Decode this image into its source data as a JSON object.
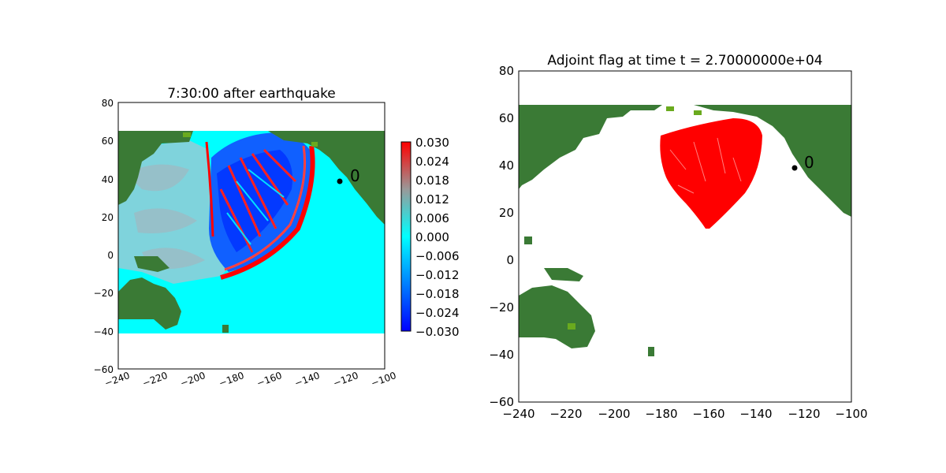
{
  "colors": {
    "land_dark": "#3a7a35",
    "land_light": "#6aaa1e",
    "ocean_zero": "#00ffff",
    "flag_red": "#ff0000",
    "gauge_marker": "#000000"
  },
  "chart_data": [
    {
      "type": "heatmap",
      "title": "7:30:00 after earthquake",
      "xlim": [
        -240,
        -100
      ],
      "ylim": [
        -60,
        80
      ],
      "x_ticks": [
        "−240",
        "−220",
        "−200",
        "−180",
        "−160",
        "−140",
        "−120",
        "−100"
      ],
      "y_ticks": [
        "80",
        "60",
        "40",
        "20",
        "0",
        "−20",
        "−40",
        "−60"
      ],
      "x_tick_rotation": "slanted",
      "grid": false,
      "domain_extent": {
        "lon": [
          -240,
          -100
        ],
        "lat": [
          -40,
          65
        ]
      },
      "colorbar": {
        "range": [
          -0.03,
          0.03
        ],
        "ticks": [
          "0.030",
          "0.024",
          "0.018",
          "0.012",
          "0.006",
          "0.000",
          "−0.006",
          "−0.012",
          "−0.018",
          "−0.024",
          "−0.030"
        ],
        "colormap": "blue-cyan-gray-red"
      },
      "gauge": {
        "label": "0",
        "lon": -123.5,
        "lat": 39.5
      }
    },
    {
      "type": "heatmap",
      "title": "Adjoint flag at time t = 2.70000000e+04",
      "xlim": [
        -240,
        -100
      ],
      "ylim": [
        -60,
        80
      ],
      "x_ticks": [
        "−240",
        "−220",
        "−200",
        "−180",
        "−160",
        "−140",
        "−120",
        "−100"
      ],
      "y_ticks": [
        "80",
        "60",
        "40",
        "20",
        "0",
        "−20",
        "−40",
        "−60"
      ],
      "grid": false,
      "domain_extent": {
        "lon": [
          -240,
          -100
        ],
        "lat": [
          -40,
          65
        ]
      },
      "flag_region": "red teardrop centred near lon -153, lat 40",
      "gauge": {
        "label": "0",
        "lon": -123.5,
        "lat": 39.5
      }
    }
  ]
}
